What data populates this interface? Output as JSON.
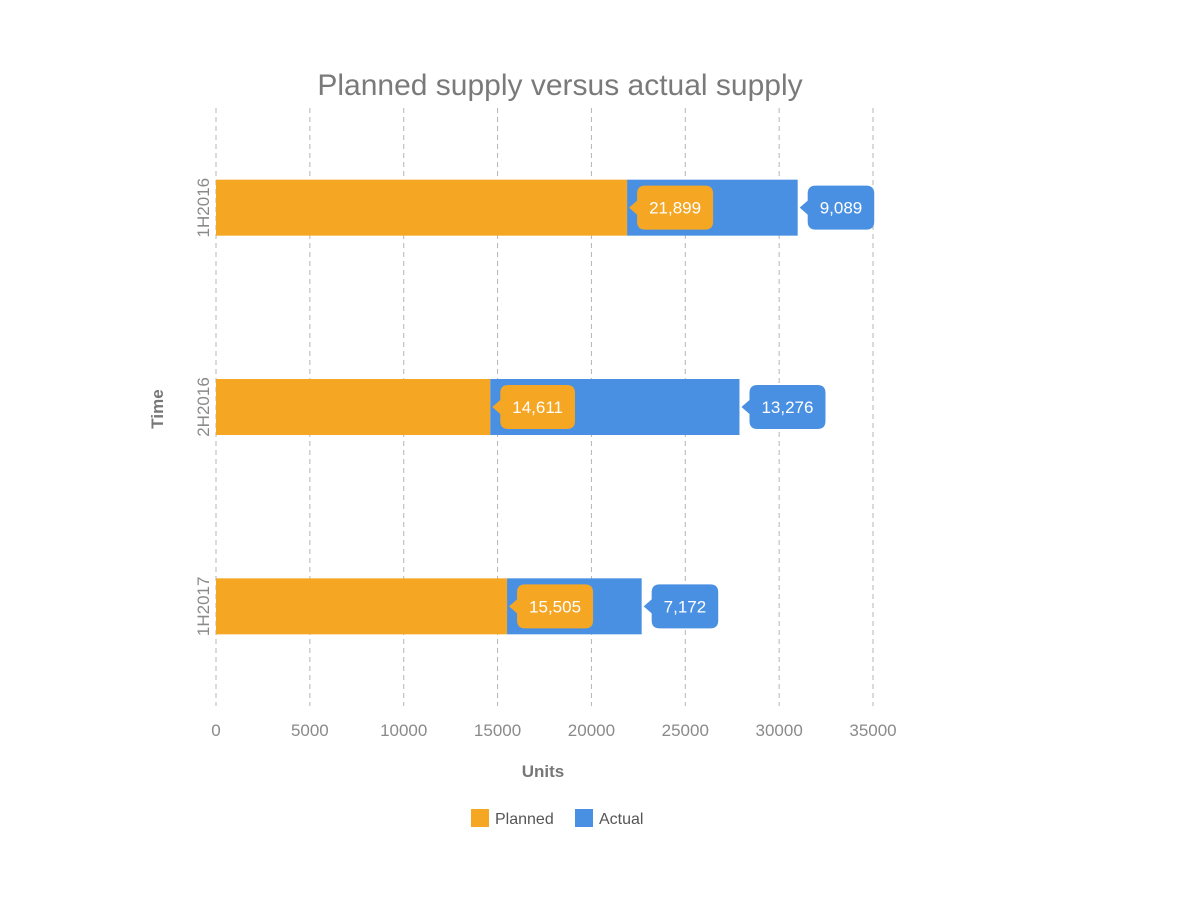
{
  "chart_data": {
    "type": "bar",
    "orientation": "horizontal",
    "stacked": true,
    "title": "Planned supply versus actual supply",
    "xlabel": "Units",
    "ylabel": "Time",
    "categories": [
      "1H2016",
      "2H2016",
      "1H2017"
    ],
    "series": [
      {
        "name": "Planned",
        "color": "#F5A623",
        "values": [
          21899,
          14611,
          15505
        ],
        "labels": [
          "21,899",
          "14,611",
          "15,505"
        ]
      },
      {
        "name": "Actual",
        "color": "#4A90E2",
        "values": [
          9089,
          13276,
          7172
        ],
        "labels": [
          "9,089",
          "13,276",
          "7,172"
        ]
      }
    ],
    "xlim": [
      0,
      35000
    ],
    "xticks": [
      0,
      5000,
      10000,
      15000,
      20000,
      25000,
      30000,
      35000
    ],
    "xtick_labels": [
      "0",
      "5000",
      "10000",
      "15000",
      "20000",
      "25000",
      "30000",
      "35000"
    ],
    "grid": "vertical dashed",
    "legend": "bottom-center"
  }
}
